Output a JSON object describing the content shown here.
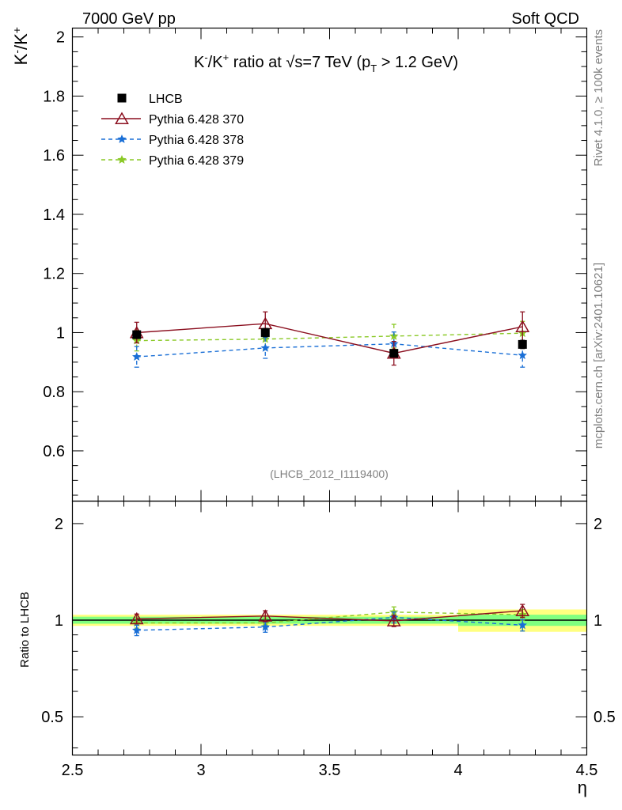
{
  "header": {
    "left": "7000 GeV pp",
    "right": "Soft QCD"
  },
  "side_labels": {
    "rivet": "Rivet 4.1.0, ≥ 100k events",
    "mcplots": "mcplots.cern.ch [arXiv:2401.10621]"
  },
  "analysis_id": "(LHCB_2012_I1119400)",
  "colors": {
    "data": "#000000",
    "p370": "#8b0f1f",
    "p378": "#1a6fd6",
    "p379": "#8ac926",
    "band_inner": "#80ff80",
    "band_outer": "#ffff80"
  },
  "chart_data": [
    {
      "type": "line",
      "panel": "main",
      "title_main": "K",
      "title_sup_minus": "-",
      "title_slash": "/K",
      "title_sup_plus": "+",
      "title_rest": " ratio at ",
      "title_sqrt": "√s",
      "title_energy": "=7 TeV (p",
      "title_sub": "T",
      "title_cut": " > 1.2 GeV)",
      "ylabel_base": "K",
      "ylabel_sup1": "-",
      "ylabel_mid": "/K",
      "ylabel_sup2": "+",
      "xlim": [
        2.5,
        4.5
      ],
      "ylim": [
        0.43,
        2.03
      ],
      "y_ticks": [
        0.6,
        0.8,
        1.0,
        1.2,
        1.4,
        1.6,
        1.8,
        2.0
      ],
      "y_tick_labels": [
        "0.6",
        "0.8",
        "1",
        "1.2",
        "1.4",
        "1.6",
        "1.8",
        "2"
      ],
      "x_ticks": [
        2.5,
        3.0,
        3.5,
        4.0,
        4.5
      ],
      "legend": [
        "LHCB",
        "Pythia 6.428 370",
        "Pythia 6.428 378",
        "Pythia 6.428 379"
      ],
      "x": [
        2.75,
        3.25,
        3.75,
        4.25
      ],
      "series": [
        {
          "name": "LHCB",
          "values": [
            0.993,
            1.0,
            0.93,
            0.96
          ],
          "errors": [
            0.012,
            0.014,
            0.012,
            0.014
          ]
        },
        {
          "name": "Pythia 6.428 370",
          "values": [
            1.0,
            1.03,
            0.93,
            1.02
          ],
          "errors": [
            0.035,
            0.04,
            0.04,
            0.05
          ]
        },
        {
          "name": "Pythia 6.428 378",
          "values": [
            0.918,
            0.948,
            0.962,
            0.923
          ],
          "errors": [
            0.035,
            0.035,
            0.04,
            0.04
          ]
        },
        {
          "name": "Pythia 6.428 379",
          "values": [
            0.973,
            0.978,
            0.988,
            0.998
          ],
          "errors": [
            0.035,
            0.035,
            0.04,
            0.04
          ]
        }
      ]
    },
    {
      "type": "line",
      "panel": "ratio",
      "ylabel": "Ratio to LHCB",
      "xlabel": "η",
      "xlim": [
        2.5,
        4.5
      ],
      "ylim": [
        0.38,
        2.35
      ],
      "y_scale": "log",
      "y_ticks": [
        0.5,
        1.0,
        2.0
      ],
      "y_tick_labels": [
        "0.5",
        "1",
        "2"
      ],
      "x_ticks": [
        2.5,
        3.0,
        3.5,
        4.0,
        4.5
      ],
      "x_tick_labels": [
        "2.5",
        "3",
        "3.5",
        "4",
        "4.5"
      ],
      "x": [
        2.75,
        3.25,
        3.75,
        4.25
      ],
      "bands": {
        "bin_edges": [
          2.5,
          3.0,
          3.5,
          4.0,
          4.5
        ],
        "inner": [
          0.025,
          0.025,
          0.025,
          0.04
        ],
        "outer": [
          0.04,
          0.04,
          0.04,
          0.08
        ]
      },
      "series": [
        {
          "name": "Pythia 6.428 370",
          "values": [
            1.01,
            1.03,
            0.995,
            1.07
          ],
          "errors": [
            0.035,
            0.04,
            0.04,
            0.05
          ]
        },
        {
          "name": "Pythia 6.428 378",
          "values": [
            0.93,
            0.952,
            1.02,
            0.965
          ],
          "errors": [
            0.035,
            0.035,
            0.04,
            0.04
          ]
        },
        {
          "name": "Pythia 6.428 379",
          "values": [
            0.98,
            0.98,
            1.06,
            1.04
          ],
          "errors": [
            0.035,
            0.035,
            0.04,
            0.04
          ]
        }
      ]
    }
  ]
}
